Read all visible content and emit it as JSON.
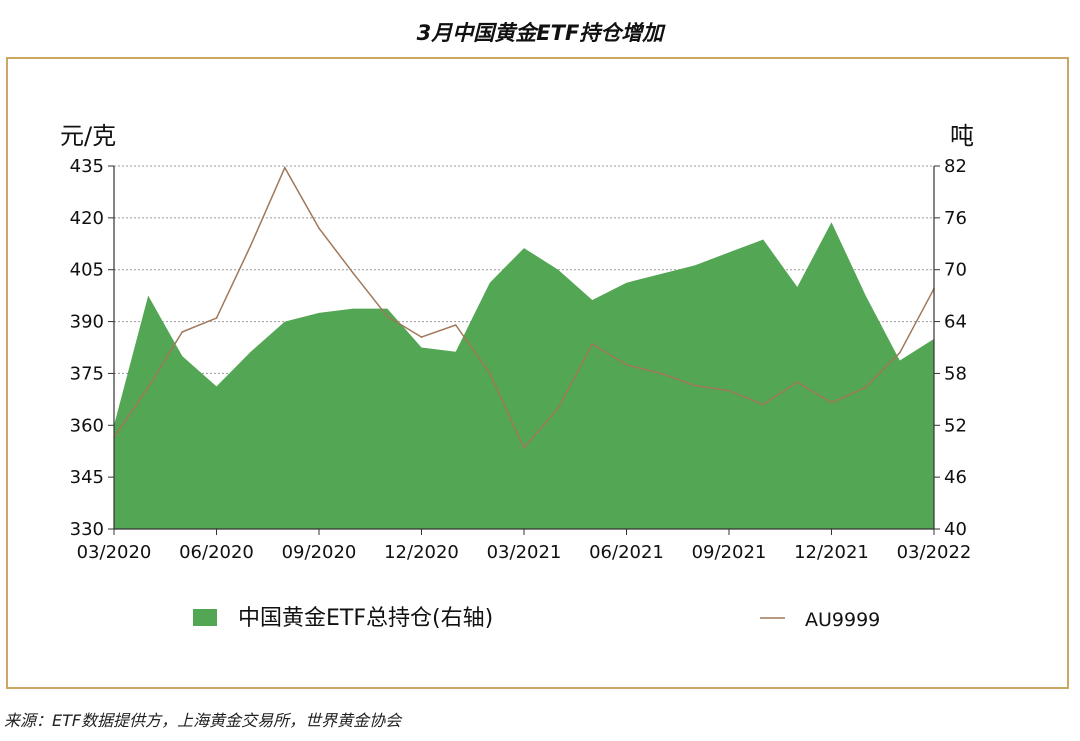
{
  "chart_data": {
    "type": "area",
    "title": "3月中国黄金ETF持仓增加",
    "source": "来源：ETF数据提供方，上海黄金交易所，世界黄金协会",
    "left_axis": {
      "label": "元/克",
      "min": 330,
      "max": 435,
      "ticks": [
        330,
        345,
        360,
        375,
        390,
        405,
        420,
        435
      ]
    },
    "right_axis": {
      "label": "吨",
      "min": 40,
      "max": 82,
      "ticks": [
        40,
        46,
        52,
        58,
        64,
        70,
        76,
        82
      ]
    },
    "x_tick_labels": [
      "03/2020",
      "06/2020",
      "09/2020",
      "12/2020",
      "03/2021",
      "06/2021",
      "09/2021",
      "12/2021",
      "03/2022"
    ],
    "grid": "horizontal dashed",
    "legend_position": "bottom",
    "series": [
      {
        "name": "中国黄金ETF总持仓(右轴)",
        "type": "area",
        "axis": "right",
        "color": "#53a653",
        "x": [
          0,
          1,
          2,
          3,
          4,
          5,
          6,
          7,
          8,
          9,
          10,
          11,
          12,
          13,
          14,
          15,
          16,
          17,
          18,
          19,
          20,
          21,
          22,
          23,
          24
        ],
        "values": [
          52.0,
          67.0,
          60.0,
          56.5,
          60.5,
          64.0,
          65.0,
          65.5,
          65.5,
          61.0,
          60.5,
          68.5,
          72.5,
          70.0,
          66.5,
          68.5,
          69.5,
          70.5,
          72.0,
          73.5,
          68.0,
          75.5,
          67.0,
          59.5,
          62.0
        ]
      },
      {
        "name": "AU9999",
        "type": "line",
        "axis": "left",
        "color": "#a0785a",
        "x": [
          0,
          1,
          2,
          3,
          4,
          5,
          6,
          7,
          8,
          9,
          10,
          11,
          12,
          13,
          14,
          15,
          16,
          17,
          18,
          19,
          20,
          21,
          22,
          23,
          24
        ],
        "values": [
          356.5,
          371.0,
          387.0,
          391.0,
          412.0,
          434.5,
          417.0,
          404.0,
          391.5,
          385.5,
          389.0,
          375.0,
          353.5,
          365.0,
          383.5,
          377.5,
          375.0,
          371.5,
          370.0,
          366.0,
          372.5,
          366.5,
          371.0,
          381.0,
          399.5
        ]
      }
    ]
  }
}
